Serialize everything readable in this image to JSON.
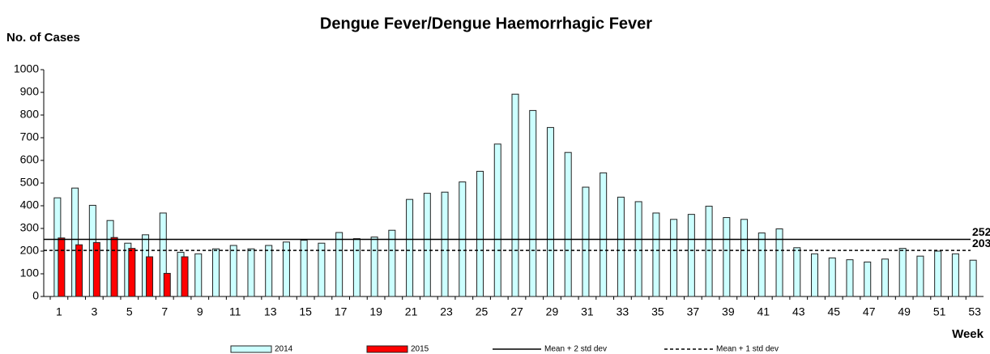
{
  "chart_data": {
    "type": "bar",
    "title": "Dengue Fever/Dengue Haemorrhagic Fever",
    "y_label": "No. of Cases",
    "x_label": "Week",
    "categories": [
      1,
      null,
      3,
      null,
      5,
      null,
      7,
      null,
      9,
      null,
      11,
      null,
      13,
      null,
      15,
      null,
      17,
      null,
      19,
      null,
      21,
      null,
      23,
      null,
      25,
      null,
      27,
      null,
      29,
      null,
      31,
      null,
      33,
      null,
      35,
      null,
      37,
      null,
      39,
      null,
      41,
      null,
      43,
      null,
      45,
      null,
      47,
      null,
      49,
      null,
      51,
      null,
      53
    ],
    "series": [
      {
        "name": "2014",
        "color": "#ccffff",
        "values": [
          435,
          478,
          402,
          335,
          235,
          272,
          368,
          195,
          188,
          210,
          225,
          210,
          225,
          240,
          248,
          235,
          282,
          255,
          262,
          292,
          428,
          455,
          460,
          505,
          552,
          672,
          892,
          820,
          745,
          635,
          482,
          545,
          438,
          418,
          368,
          340,
          362,
          398,
          348,
          340,
          280,
          298,
          215,
          188,
          170,
          162,
          152,
          165,
          212,
          178,
          200,
          188,
          160
        ]
      },
      {
        "name": "2015",
        "color": "#ff0000",
        "values": [
          258,
          228,
          238,
          260,
          212,
          175,
          102,
          175,
          null,
          null,
          null,
          null,
          null,
          null,
          null,
          null,
          null,
          null,
          null,
          null,
          null,
          null,
          null,
          null,
          null,
          null,
          null,
          null,
          null,
          null,
          null,
          null,
          null,
          null,
          null,
          null,
          null,
          null,
          null,
          null,
          null,
          null,
          null,
          null,
          null,
          null,
          null,
          null,
          null,
          null,
          null,
          null,
          null
        ]
      }
    ],
    "reference_lines": [
      {
        "name": "Mean + 2 std dev",
        "value": 252,
        "dashed": false
      },
      {
        "name": "Mean + 1 std dev",
        "value": 203,
        "dashed": true
      }
    ],
    "ylim": [
      0,
      1000
    ],
    "yticks": [
      0,
      100,
      200,
      300,
      400,
      500,
      600,
      700,
      800,
      900,
      1000
    ],
    "grid": false,
    "legend": "bottom"
  }
}
